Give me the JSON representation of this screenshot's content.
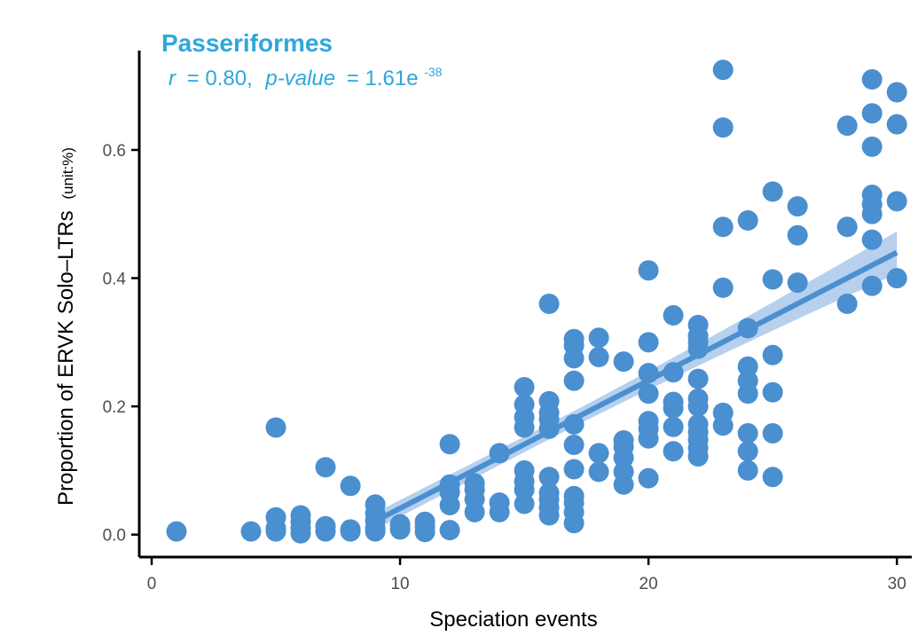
{
  "chart_data": {
    "type": "scatter",
    "title": "Passeriformes",
    "annotation": {
      "r_label": "r",
      "r_value": "= 0.80,",
      "p_label": "p-value",
      "p_value": "= 1.61e",
      "p_exponent": "-38"
    },
    "xlabel": "Speciation events",
    "ylabel": "Proportion of ERVK Solo–LTRs",
    "ylabel_unit": "(unit:%)",
    "xlim": [
      -0.5,
      30.6
    ],
    "ylim": [
      -0.035,
      0.755
    ],
    "x_ticks": [
      0,
      10,
      20,
      30
    ],
    "x_tick_labels": [
      "0",
      "10",
      "20",
      "30"
    ],
    "y_ticks": [
      0.0,
      0.2,
      0.4,
      0.6
    ],
    "y_tick_labels": [
      "0.0",
      "0.2",
      "0.4",
      "0.6"
    ],
    "grid": false,
    "legend": "none",
    "colors": {
      "points": "#4a8fd0",
      "fit_line": "#4a8fd0",
      "confidence_band": "#a9c8eb",
      "annotation": "#2fa7dc"
    },
    "fit": {
      "x_start": 9.2,
      "y_start": 0.025,
      "x_end": 30,
      "y_end": 0.44,
      "band_start_half_width": 0.013,
      "band_mid_half_width": 0.012,
      "band_end_half_width": 0.033
    },
    "points": [
      [
        1,
        0.005
      ],
      [
        4,
        0.005
      ],
      [
        5,
        0.005
      ],
      [
        5,
        0.01
      ],
      [
        5,
        0.027
      ],
      [
        5,
        0.167
      ],
      [
        6,
        0.002
      ],
      [
        6,
        0.01
      ],
      [
        6,
        0.02
      ],
      [
        6,
        0.03
      ],
      [
        7,
        0.005
      ],
      [
        7,
        0.013
      ],
      [
        7,
        0.105
      ],
      [
        8,
        0.005
      ],
      [
        8,
        0.008
      ],
      [
        8,
        0.076
      ],
      [
        9,
        0.005
      ],
      [
        9,
        0.01
      ],
      [
        9,
        0.022
      ],
      [
        9,
        0.033
      ],
      [
        9,
        0.047
      ],
      [
        10,
        0.008
      ],
      [
        10,
        0.016
      ],
      [
        11,
        0.004
      ],
      [
        11,
        0.012
      ],
      [
        11,
        0.02
      ],
      [
        12,
        0.007
      ],
      [
        12,
        0.046
      ],
      [
        12,
        0.066
      ],
      [
        12,
        0.078
      ],
      [
        12,
        0.141
      ],
      [
        13,
        0.035
      ],
      [
        13,
        0.055
      ],
      [
        13,
        0.07
      ],
      [
        13,
        0.08
      ],
      [
        14,
        0.035
      ],
      [
        14,
        0.05
      ],
      [
        14,
        0.127
      ],
      [
        15,
        0.048
      ],
      [
        15,
        0.07
      ],
      [
        15,
        0.083
      ],
      [
        15,
        0.1
      ],
      [
        15,
        0.167
      ],
      [
        15,
        0.183
      ],
      [
        15,
        0.203
      ],
      [
        15,
        0.23
      ],
      [
        16,
        0.03
      ],
      [
        16,
        0.042
      ],
      [
        16,
        0.055
      ],
      [
        16,
        0.065
      ],
      [
        16,
        0.09
      ],
      [
        16,
        0.165
      ],
      [
        16,
        0.18
      ],
      [
        16,
        0.19
      ],
      [
        16,
        0.208
      ],
      [
        16,
        0.36
      ],
      [
        17,
        0.018
      ],
      [
        17,
        0.035
      ],
      [
        17,
        0.05
      ],
      [
        17,
        0.06
      ],
      [
        17,
        0.102
      ],
      [
        17,
        0.14
      ],
      [
        17,
        0.172
      ],
      [
        17,
        0.24
      ],
      [
        17,
        0.275
      ],
      [
        17,
        0.295
      ],
      [
        17,
        0.305
      ],
      [
        18,
        0.098
      ],
      [
        18,
        0.127
      ],
      [
        18,
        0.277
      ],
      [
        18,
        0.307
      ],
      [
        19,
        0.078
      ],
      [
        19,
        0.098
      ],
      [
        19,
        0.12
      ],
      [
        19,
        0.137
      ],
      [
        19,
        0.147
      ],
      [
        19,
        0.27
      ],
      [
        20,
        0.088
      ],
      [
        20,
        0.15
      ],
      [
        20,
        0.165
      ],
      [
        20,
        0.177
      ],
      [
        20,
        0.22
      ],
      [
        20,
        0.252
      ],
      [
        20,
        0.3
      ],
      [
        20,
        0.412
      ],
      [
        21,
        0.13
      ],
      [
        21,
        0.168
      ],
      [
        21,
        0.197
      ],
      [
        21,
        0.207
      ],
      [
        21,
        0.253
      ],
      [
        21,
        0.342
      ],
      [
        22,
        0.122
      ],
      [
        22,
        0.135
      ],
      [
        22,
        0.148
      ],
      [
        22,
        0.16
      ],
      [
        22,
        0.172
      ],
      [
        22,
        0.2
      ],
      [
        22,
        0.212
      ],
      [
        22,
        0.243
      ],
      [
        22,
        0.29
      ],
      [
        22,
        0.3
      ],
      [
        22,
        0.31
      ],
      [
        22,
        0.327
      ],
      [
        23,
        0.17
      ],
      [
        23,
        0.19
      ],
      [
        23,
        0.385
      ],
      [
        23,
        0.48
      ],
      [
        23,
        0.635
      ],
      [
        23,
        0.725
      ],
      [
        24,
        0.1
      ],
      [
        24,
        0.13
      ],
      [
        24,
        0.158
      ],
      [
        24,
        0.22
      ],
      [
        24,
        0.24
      ],
      [
        24,
        0.262
      ],
      [
        24,
        0.322
      ],
      [
        24,
        0.49
      ],
      [
        25,
        0.09
      ],
      [
        25,
        0.158
      ],
      [
        25,
        0.222
      ],
      [
        25,
        0.28
      ],
      [
        25,
        0.398
      ],
      [
        25,
        0.535
      ],
      [
        26,
        0.393
      ],
      [
        26,
        0.467
      ],
      [
        26,
        0.512
      ],
      [
        28,
        0.36
      ],
      [
        28,
        0.48
      ],
      [
        28,
        0.638
      ],
      [
        29,
        0.388
      ],
      [
        29,
        0.46
      ],
      [
        29,
        0.5
      ],
      [
        29,
        0.515
      ],
      [
        29,
        0.53
      ],
      [
        29,
        0.605
      ],
      [
        29,
        0.657
      ],
      [
        29,
        0.71
      ],
      [
        30,
        0.4
      ],
      [
        30,
        0.52
      ],
      [
        30,
        0.64
      ],
      [
        30,
        0.69
      ]
    ]
  }
}
